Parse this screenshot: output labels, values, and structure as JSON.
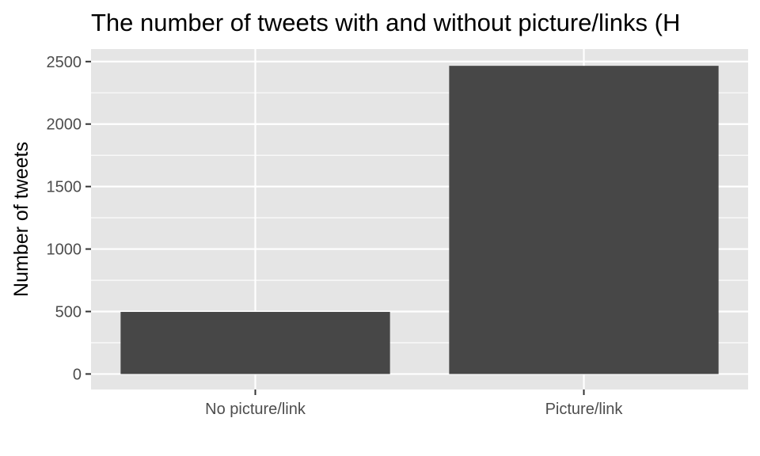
{
  "chart_data": {
    "type": "bar",
    "title": "The number of tweets with and without picture/links (H",
    "xlabel": "",
    "ylabel": "Number of tweets",
    "categories": [
      "No picture/link",
      "Picture/link"
    ],
    "values": [
      497,
      2466
    ],
    "ylim": [
      -124,
      2600
    ],
    "yticks": [
      0,
      500,
      1000,
      1500,
      2000,
      2500
    ],
    "grid": true,
    "colors": {
      "panel": "#e5e5e5",
      "grid": "#ffffff",
      "bar": "#474747",
      "tick_text": "#4d4d4d",
      "axis_ticks": "#333333"
    }
  }
}
